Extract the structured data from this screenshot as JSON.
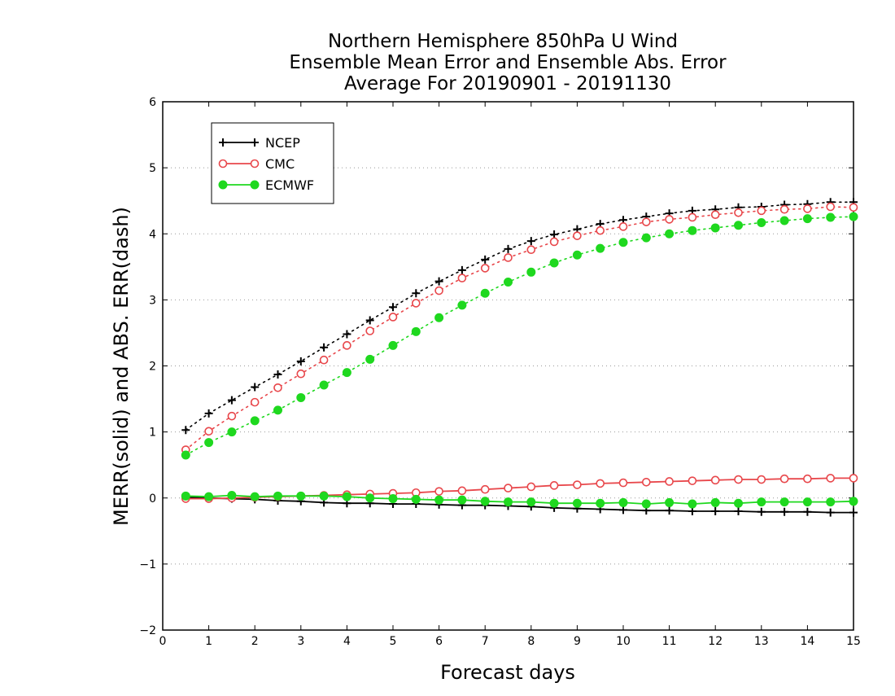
{
  "chart_data": {
    "type": "line",
    "title_lines": [
      "Northern Hemisphere 850hPa U Wind",
      "Ensemble Mean Error and Ensemble Abs. Error",
      "Average For 20190901 - 20191130"
    ],
    "xlabel": "Forecast days",
    "ylabel": "MERR(solid) and ABS. ERR(dash)",
    "xlim": [
      0,
      15
    ],
    "ylim": [
      -2,
      6
    ],
    "x_ticks": [
      "0",
      "1",
      "2",
      "3",
      "4",
      "5",
      "6",
      "7",
      "8",
      "9",
      "10",
      "11",
      "12",
      "13",
      "14",
      "15"
    ],
    "y_ticks": [
      "−2",
      "−1",
      "0",
      "1",
      "2",
      "3",
      "4",
      "5",
      "6"
    ],
    "grid": "horizontal dotted",
    "legend_position": "top-left",
    "x": [
      0.5,
      1,
      1.5,
      2,
      2.5,
      3,
      3.5,
      4,
      4.5,
      5,
      5.5,
      6,
      6.5,
      7,
      7.5,
      8,
      8.5,
      9,
      9.5,
      10,
      10.5,
      11,
      11.5,
      12,
      12.5,
      13,
      13.5,
      14,
      14.5,
      15
    ],
    "series": [
      {
        "name": "NCEP",
        "color": "#000000",
        "marker": "plus",
        "abs_err": [
          1.03,
          1.28,
          1.48,
          1.68,
          1.87,
          2.07,
          2.28,
          2.48,
          2.69,
          2.89,
          3.1,
          3.28,
          3.45,
          3.61,
          3.77,
          3.89,
          3.99,
          4.07,
          4.15,
          4.21,
          4.26,
          4.31,
          4.35,
          4.37,
          4.4,
          4.41,
          4.44,
          4.45,
          4.48,
          4.48
        ],
        "mean_err": [
          0.01,
          0.0,
          -0.01,
          -0.02,
          -0.04,
          -0.05,
          -0.07,
          -0.08,
          -0.08,
          -0.09,
          -0.09,
          -0.1,
          -0.11,
          -0.11,
          -0.12,
          -0.13,
          -0.15,
          -0.16,
          -0.17,
          -0.18,
          -0.19,
          -0.19,
          -0.2,
          -0.2,
          -0.2,
          -0.21,
          -0.21,
          -0.21,
          -0.22,
          -0.22
        ]
      },
      {
        "name": "CMC",
        "color": "#e8474b",
        "marker": "open-circle",
        "abs_err": [
          0.73,
          1.01,
          1.24,
          1.45,
          1.67,
          1.88,
          2.09,
          2.31,
          2.53,
          2.74,
          2.95,
          3.14,
          3.33,
          3.48,
          3.64,
          3.76,
          3.88,
          3.97,
          4.05,
          4.11,
          4.18,
          4.22,
          4.25,
          4.29,
          4.32,
          4.35,
          4.37,
          4.38,
          4.41,
          4.4
        ],
        "mean_err": [
          -0.01,
          -0.01,
          0.0,
          0.01,
          0.02,
          0.03,
          0.04,
          0.05,
          0.06,
          0.07,
          0.08,
          0.1,
          0.11,
          0.13,
          0.15,
          0.17,
          0.19,
          0.2,
          0.22,
          0.23,
          0.24,
          0.25,
          0.26,
          0.27,
          0.28,
          0.28,
          0.29,
          0.29,
          0.3,
          0.3
        ]
      },
      {
        "name": "ECMWF",
        "color": "#1fd81f",
        "marker": "filled-circle",
        "abs_err": [
          0.65,
          0.84,
          1.0,
          1.17,
          1.33,
          1.52,
          1.71,
          1.9,
          2.1,
          2.31,
          2.52,
          2.73,
          2.92,
          3.1,
          3.27,
          3.42,
          3.56,
          3.68,
          3.78,
          3.87,
          3.94,
          4.0,
          4.05,
          4.09,
          4.13,
          4.17,
          4.2,
          4.23,
          4.25,
          4.26
        ],
        "mean_err": [
          0.03,
          0.02,
          0.04,
          0.02,
          0.03,
          0.03,
          0.03,
          0.02,
          0.0,
          -0.01,
          -0.02,
          -0.03,
          -0.03,
          -0.05,
          -0.06,
          -0.06,
          -0.08,
          -0.08,
          -0.08,
          -0.07,
          -0.09,
          -0.07,
          -0.09,
          -0.07,
          -0.08,
          -0.06,
          -0.06,
          -0.06,
          -0.06,
          -0.05
        ]
      }
    ]
  }
}
